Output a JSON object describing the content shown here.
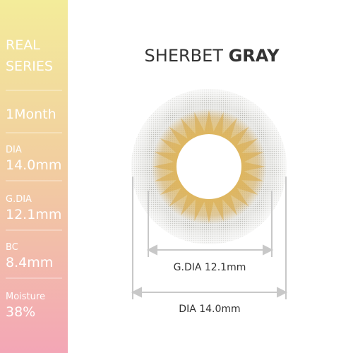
{
  "sidebar": {
    "series": [
      "REAL",
      "SERIES"
    ],
    "period": "1Month",
    "specs": [
      {
        "label": "DIA",
        "value": "14.0mm"
      },
      {
        "label": "G.DIA",
        "value": "12.1mm"
      },
      {
        "label": "BC",
        "value": "8.4mm"
      },
      {
        "label": "Moisture",
        "value": "38%"
      }
    ]
  },
  "title": {
    "name": "SHERBET",
    "color": "GRAY"
  },
  "dimensions": [
    {
      "label": "G.DIA 12.1mm"
    },
    {
      "label": "DIA 14.0mm"
    }
  ]
}
